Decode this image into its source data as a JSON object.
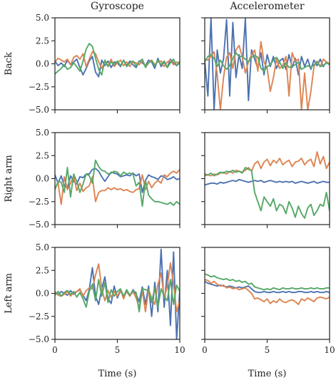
{
  "figure": {
    "columns": [
      "Gyroscope",
      "Accelerometer"
    ],
    "rows": [
      "Back",
      "Right arm",
      "Left arm"
    ],
    "xlabel": "Time (s)"
  },
  "chart_data": {
    "type": "line",
    "layout": "3x2 grid, shared axes",
    "grid": false,
    "legend": "none",
    "xlim": [
      0,
      10
    ],
    "ylim": [
      -5,
      5
    ],
    "xticks": [
      "0",
      "5",
      "10"
    ],
    "yticks": [
      "5.0",
      "2.5",
      "0.0",
      "−2.5",
      "−5.0"
    ],
    "series_colors": [
      "#4c72b0",
      "#dd8452",
      "#55a868"
    ],
    "x": [
      0,
      0.25,
      0.5,
      0.75,
      1,
      1.25,
      1.5,
      1.75,
      2,
      2.25,
      2.5,
      2.75,
      3,
      3.25,
      3.5,
      3.75,
      4,
      4.25,
      4.5,
      4.75,
      5,
      5.25,
      5.5,
      5.75,
      6,
      6.25,
      6.5,
      6.75,
      7,
      7.25,
      7.5,
      7.75,
      8,
      8.25,
      8.5,
      8.75,
      9,
      9.25,
      9.5,
      9.75,
      10
    ],
    "panels": [
      {
        "row": "Back",
        "column": "Gyroscope",
        "series": [
          {
            "values": [
              0.3,
              -0.2,
              0.1,
              -0.3,
              0.4,
              -0.1,
              0.2,
              0.5,
              -0.4,
              -1.2,
              -0.5,
              0.3,
              0.8,
              -0.9,
              -1.4,
              0.4,
              -0.2,
              0.3,
              -0.4,
              0.2,
              0.1,
              -0.3,
              0.4,
              -0.2,
              0.3,
              -0.1,
              -0.4,
              0.3,
              0.1,
              -0.2,
              0.4,
              0.2,
              -0.5,
              0.6,
              -0.3,
              0.2,
              -0.4,
              0.5,
              0.1,
              -0.2,
              0.1
            ]
          },
          {
            "values": [
              0.2,
              0.6,
              0.4,
              0.2,
              0.5,
              -0.1,
              0.7,
              0.9,
              0.5,
              1.1,
              -0.3,
              0.5,
              1.3,
              1.1,
              0.2,
              -0.5,
              0.2,
              -0.2,
              0.5,
              -0.3,
              0.1,
              0.4,
              -0.2,
              0.2,
              -0.3,
              0.2,
              0.1,
              -0.1,
              0.3,
              -0.2,
              0.1,
              0.4,
              -0.1,
              0.2,
              0.3,
              -0.3,
              0.2,
              0.4,
              -0.1,
              0.2,
              0
            ]
          },
          {
            "values": [
              -1.1,
              -0.8,
              -0.5,
              -0.1,
              -0.6,
              -0.4,
              0.1,
              -0.3,
              -0.8,
              0.3,
              1.6,
              2.2,
              1.9,
              0.6,
              -0.6,
              -1.2,
              0.4,
              -0.3,
              0.2,
              -0.1,
              0.3,
              -0.2,
              0.4,
              -0.3,
              0.1,
              0.3,
              -0.2,
              0.2,
              0.5,
              -0.4,
              0.1,
              0.3,
              -0.2,
              0.4,
              -0.1,
              0.3,
              -0.4,
              0.1,
              0.5,
              -0.2,
              0.3
            ]
          }
        ]
      },
      {
        "row": "Back",
        "column": "Accelerometer",
        "series": [
          {
            "values": [
              0.3,
              -3.5,
              5.0,
              -5.0,
              1.5,
              -1.0,
              0.5,
              4.8,
              -3.5,
              4.5,
              -1.5,
              1.0,
              -0.5,
              4.9,
              -4.0,
              1.5,
              0.5,
              -0.5,
              1.2,
              -1.2,
              1.0,
              -0.3,
              0.8,
              -0.5,
              0.3,
              0.6,
              -0.6,
              1.0,
              -0.4,
              0.6,
              -1.2,
              0.8,
              -0.3,
              0.5,
              -0.6,
              0.4,
              -0.2,
              0.5,
              -0.3,
              0.2,
              0
            ]
          },
          {
            "values": [
              0.5,
              0.4,
              0.8,
              1.3,
              -1.2,
              -5.0,
              -1.5,
              0.7,
              1.2,
              -0.5,
              1.5,
              2.0,
              0.8,
              -1.0,
              0.2,
              1.0,
              1.5,
              -0.8,
              2.4,
              0.2,
              -0.5,
              -3.0,
              -1.5,
              0.5,
              -0.5,
              -0.2,
              0.8,
              -3.5,
              1.2,
              0.3,
              0.5,
              -5.0,
              -1.0,
              -5.0,
              -3.0,
              -0.3,
              0.3,
              -0.3,
              0.5,
              0.2,
              0
            ]
          },
          {
            "values": [
              0.2,
              0.8,
              1.0,
              0.6,
              -0.3,
              0.4,
              -0.2,
              -0.6,
              -0.2,
              0.6,
              1.2,
              0.8,
              0.8,
              0.5,
              0.2,
              0.7,
              0.9,
              0.7,
              -0.5,
              -0.8,
              -0.3,
              -0.1,
              0.4,
              0.7,
              0.2,
              -0.5,
              0.1,
              -0.4,
              -0.3,
              -0.1,
              0.2,
              -0.6,
              -0.4,
              -0.2,
              -0.4,
              -0.1,
              0.2,
              -0.3,
              -0.2,
              0.1,
              -0.1
            ]
          }
        ]
      },
      {
        "row": "Right arm",
        "column": "Gyroscope",
        "series": [
          {
            "values": [
              0.4,
              -0.5,
              0.3,
              -0.8,
              -1.0,
              0.3,
              -0.3,
              -0.6,
              0.2,
              0.1,
              0.5,
              0.5,
              1.0,
              1.1,
              0.8,
              0.2,
              -0.3,
              0.2,
              0.7,
              0.6,
              0.5,
              0.2,
              0.3,
              0.4,
              0.3,
              0.6,
              0.3,
              0.5,
              -1.5,
              -0.2,
              0.4,
              0.2,
              0.1,
              -0.1,
              0.3,
              0.2,
              -0.1,
              0,
              0.2,
              -0.1,
              0
            ]
          },
          {
            "values": [
              -1.0,
              -0.5,
              -2.8,
              0.2,
              -1.2,
              -0.5,
              0.3,
              -1.3,
              -0.5,
              -1.4,
              -1.0,
              -0.8,
              0.2,
              -2.5,
              -1.5,
              -1.3,
              -1.3,
              -1.0,
              -1.2,
              -1.0,
              -1.2,
              -1.1,
              -1.3,
              -1.2,
              -1.4,
              -1.5,
              -1.2,
              -1.1,
              0.4,
              -1.2,
              -0.3,
              -1.0,
              -0.5,
              -0.2,
              -0.5,
              0.4,
              0.2,
              0.6,
              0.8,
              0.6,
              1.0
            ]
          },
          {
            "values": [
              -1.2,
              -0.3,
              -0.4,
              -1.5,
              1.2,
              -2.0,
              0.5,
              -0.3,
              -1.5,
              -0.6,
              0.5,
              0.3,
              -0.5,
              2.0,
              1.3,
              0.9,
              0.8,
              0.5,
              0.6,
              0.8,
              0.7,
              0.3,
              0.7,
              0.5,
              0.6,
              0.5,
              -0.8,
              -0.4,
              -3.0,
              -0.2,
              -1.8,
              -2.2,
              -2.5,
              -2.5,
              -2.6,
              -2.7,
              -2.8,
              -2.6,
              -2.9,
              -2.5,
              -2.8
            ]
          }
        ]
      },
      {
        "row": "Right arm",
        "column": "Accelerometer",
        "series": [
          {
            "values": [
              -0.7,
              -0.6,
              -0.5,
              -0.5,
              -0.6,
              -0.4,
              -0.5,
              -0.4,
              -0.3,
              -0.2,
              -0.3,
              -0.1,
              -0.2,
              -0.3,
              -0.4,
              -0.3,
              -0.2,
              -0.3,
              -0.2,
              -0.4,
              -0.3,
              -0.2,
              -0.3,
              -0.4,
              -0.3,
              -0.4,
              -0.3,
              -0.4,
              -0.3,
              -0.5,
              -0.4,
              -0.3,
              -0.4,
              -0.5,
              -0.4,
              -0.3,
              -0.5,
              -0.4,
              -0.3,
              -0.4,
              -0.4
            ]
          },
          {
            "values": [
              0.3,
              0.4,
              0.3,
              0.5,
              0.4,
              0.6,
              0.7,
              0.5,
              0.8,
              0.6,
              0.9,
              0.8,
              0.7,
              0.9,
              1.2,
              0.8,
              1.6,
              1.9,
              1.1,
              1.8,
              2.1,
              1.4,
              2.0,
              1.7,
              2.2,
              1.5,
              1.8,
              2.0,
              1.3,
              1.8,
              1.9,
              2.2,
              1.5,
              1.9,
              2.1,
              1.3,
              2.9,
              1.6,
              2.4,
              1.1,
              1.8
            ]
          },
          {
            "values": [
              0.5,
              0.4,
              0.6,
              0.3,
              0.5,
              0.7,
              0.6,
              0.8,
              0.7,
              0.9,
              0.7,
              0.8,
              0.6,
              1.2,
              1.0,
              0.9,
              -1.5,
              -2.5,
              -3.5,
              -2.0,
              -2.5,
              -3.0,
              -2.2,
              -3.5,
              -2.8,
              -3.0,
              -3.8,
              -2.5,
              -3.2,
              -4.2,
              -3.0,
              -3.8,
              -4.3,
              -3.2,
              -2.8,
              -4.0,
              -3.5,
              -2.8,
              -3.0,
              -1.5,
              -3.5
            ]
          }
        ]
      },
      {
        "row": "Left arm",
        "column": "Gyroscope",
        "series": [
          {
            "values": [
              0.1,
              -0.1,
              0.2,
              0,
              -0.2,
              0.3,
              -0.1,
              0.2,
              0.4,
              -0.2,
              -0.8,
              0.4,
              2.8,
              -0.3,
              -1.2,
              0.5,
              1.8,
              -0.6,
              -1.1,
              0.8,
              -0.5,
              0.3,
              -0.4,
              0.2,
              -0.3,
              0.4,
              -0.1,
              -0.9,
              0.7,
              -1.2,
              0.8,
              -2.5,
              1.2,
              -2.0,
              4.8,
              -1.5,
              2.5,
              -3.5,
              4.5,
              -5.0,
              0.3
            ]
          },
          {
            "values": [
              0.2,
              -0.2,
              -0.3,
              -0.1,
              0.2,
              -0.3,
              0.1,
              0.2,
              0.5,
              -0.3,
              0.3,
              0.6,
              0.5,
              2.0,
              3.2,
              0.5,
              -0.8,
              0.3,
              -0.4,
              0.2,
              -0.3,
              0.4,
              -0.6,
              0.3,
              -0.3,
              0.2,
              -0.5,
              -1.5,
              0.3,
              -2.0,
              0.4,
              -0.5,
              -1.2,
              1.0,
              2.2,
              -0.5,
              0.8,
              3.3,
              1.0,
              -2.0,
              -0.8
            ]
          },
          {
            "values": [
              -0.2,
              0.2,
              -0.3,
              0.1,
              0.3,
              -0.1,
              0.2,
              -0.4,
              0.1,
              -0.6,
              -1.5,
              0.2,
              1.0,
              -0.8,
              1.5,
              -0.3,
              1.2,
              -1.0,
              0.4,
              -0.3,
              0.2,
              0.5,
              -0.3,
              0.4,
              -0.2,
              0.3,
              0.1,
              -2.0,
              0.5,
              0.4,
              0.3,
              -1.0,
              0.6,
              -1.5,
              0.5,
              -0.3,
              -0.8,
              1.5,
              -1.2,
              0.9,
              0.2
            ]
          }
        ]
      },
      {
        "row": "Left arm",
        "column": "Accelerometer",
        "series": [
          {
            "values": [
              1.3,
              1.1,
              1.0,
              0.9,
              0.8,
              0.9,
              0.8,
              0.7,
              0.8,
              0.7,
              0.6,
              0.7,
              0.6,
              0.7,
              0.8,
              0.5,
              0.2,
              0.1,
              0.1,
              0.2,
              0.1,
              0.1,
              0.2,
              0.1,
              0.1,
              0.2,
              0.1,
              0.2,
              0.1,
              0.1,
              0.2,
              0.2,
              0.1,
              0.1,
              0.2,
              0.1,
              0.2,
              0.1,
              0.1,
              0.2,
              0.1
            ]
          },
          {
            "values": [
              1.5,
              1.4,
              1.1,
              1.3,
              1.0,
              0.8,
              0.9,
              0.6,
              0.7,
              0.5,
              0.6,
              0.4,
              0.5,
              0.6,
              0.3,
              0,
              -0.6,
              -0.5,
              -0.7,
              -0.9,
              -0.6,
              -1.1,
              -0.8,
              -1.0,
              -0.6,
              -0.9,
              -1.0,
              -0.8,
              -0.7,
              -0.9,
              -1.2,
              -0.6,
              -0.8,
              -0.5,
              -0.7,
              -0.9,
              -0.5,
              -0.4,
              -0.5,
              -0.6,
              -0.4
            ]
          },
          {
            "values": [
              2.1,
              2.0,
              1.8,
              1.9,
              1.7,
              1.6,
              1.5,
              1.6,
              1.4,
              1.5,
              1.3,
              1.4,
              1.2,
              1.3,
              1.0,
              1.1,
              0.7,
              0.6,
              0.5,
              0.4,
              0.5,
              0.4,
              0.6,
              0.5,
              0.4,
              0.6,
              0.5,
              0.5,
              0.6,
              0.5,
              0.5,
              0.6,
              0.5,
              0.5,
              0.6,
              0.5,
              0.6,
              0.5,
              0.5,
              0.6,
              0.6
            ]
          }
        ]
      }
    ]
  }
}
